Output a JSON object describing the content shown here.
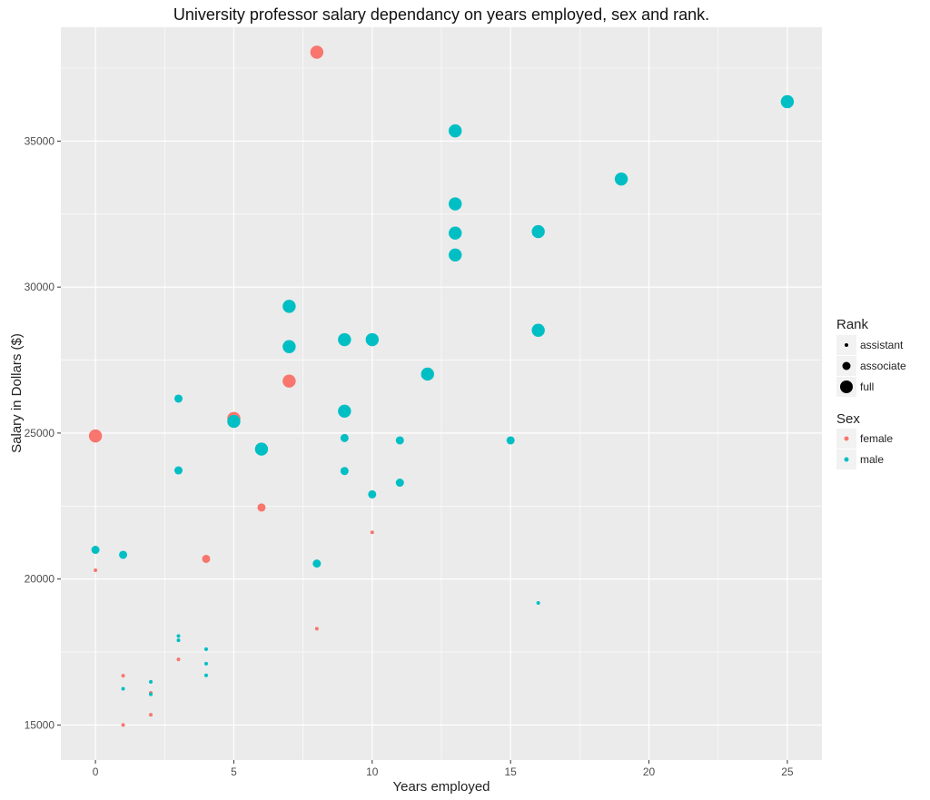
{
  "chart_data": {
    "type": "scatter",
    "title": "University professor salary dependancy on years employed, sex and rank.",
    "xlabel": "Years employed",
    "ylabel": "Salary in Dollars ($)",
    "xlim": [
      -1.25,
      26.25
    ],
    "ylim": [
      13800,
      38900
    ],
    "x_ticks": [
      0,
      5,
      10,
      15,
      20,
      25
    ],
    "y_ticks": [
      15000,
      20000,
      25000,
      30000,
      35000
    ],
    "grid": true,
    "colors": {
      "female": "#F8766D",
      "male": "#00BFC4",
      "panel": "#EBEBEB",
      "grid": "#FFFFFF"
    },
    "legend": {
      "rank": {
        "title": "Rank",
        "entries": [
          "assistant",
          "associate",
          "full"
        ]
      },
      "sex": {
        "title": "Sex",
        "entries": [
          "female",
          "male"
        ]
      }
    },
    "points": [
      {
        "x": 8,
        "y": 38045,
        "sex": "female",
        "rank": "full"
      },
      {
        "x": 0,
        "y": 24900,
        "sex": "female",
        "rank": "full"
      },
      {
        "x": 5,
        "y": 25500,
        "sex": "female",
        "rank": "full"
      },
      {
        "x": 7,
        "y": 26780,
        "sex": "female",
        "rank": "full"
      },
      {
        "x": 6,
        "y": 22450,
        "sex": "female",
        "rank": "associate"
      },
      {
        "x": 4,
        "y": 20690,
        "sex": "female",
        "rank": "associate"
      },
      {
        "x": 0,
        "y": 20300,
        "sex": "female",
        "rank": "assistant"
      },
      {
        "x": 1,
        "y": 16690,
        "sex": "female",
        "rank": "assistant"
      },
      {
        "x": 1,
        "y": 15000,
        "sex": "female",
        "rank": "assistant"
      },
      {
        "x": 2,
        "y": 16100,
        "sex": "female",
        "rank": "assistant"
      },
      {
        "x": 2,
        "y": 15350,
        "sex": "female",
        "rank": "assistant"
      },
      {
        "x": 3,
        "y": 17250,
        "sex": "female",
        "rank": "assistant"
      },
      {
        "x": 8,
        "y": 18300,
        "sex": "female",
        "rank": "assistant"
      },
      {
        "x": 10,
        "y": 21600,
        "sex": "female",
        "rank": "assistant"
      },
      {
        "x": 25,
        "y": 36350,
        "sex": "male",
        "rank": "full"
      },
      {
        "x": 13,
        "y": 35350,
        "sex": "male",
        "rank": "full"
      },
      {
        "x": 19,
        "y": 33700,
        "sex": "male",
        "rank": "full"
      },
      {
        "x": 13,
        "y": 32850,
        "sex": "male",
        "rank": "full"
      },
      {
        "x": 16,
        "y": 31900,
        "sex": "male",
        "rank": "full"
      },
      {
        "x": 13,
        "y": 31850,
        "sex": "male",
        "rank": "full"
      },
      {
        "x": 13,
        "y": 31100,
        "sex": "male",
        "rank": "full"
      },
      {
        "x": 7,
        "y": 29340,
        "sex": "male",
        "rank": "full"
      },
      {
        "x": 16,
        "y": 28520,
        "sex": "male",
        "rank": "full"
      },
      {
        "x": 9,
        "y": 28200,
        "sex": "male",
        "rank": "full"
      },
      {
        "x": 10,
        "y": 28200,
        "sex": "male",
        "rank": "full"
      },
      {
        "x": 7,
        "y": 27960,
        "sex": "male",
        "rank": "full"
      },
      {
        "x": 12,
        "y": 27020,
        "sex": "male",
        "rank": "full"
      },
      {
        "x": 9,
        "y": 25750,
        "sex": "male",
        "rank": "full"
      },
      {
        "x": 5,
        "y": 25400,
        "sex": "male",
        "rank": "full"
      },
      {
        "x": 6,
        "y": 24450,
        "sex": "male",
        "rank": "full"
      },
      {
        "x": 3,
        "y": 26180,
        "sex": "male",
        "rank": "associate"
      },
      {
        "x": 9,
        "y": 24830,
        "sex": "male",
        "rank": "associate"
      },
      {
        "x": 11,
        "y": 24750,
        "sex": "male",
        "rank": "associate"
      },
      {
        "x": 15,
        "y": 24750,
        "sex": "male",
        "rank": "associate"
      },
      {
        "x": 3,
        "y": 23720,
        "sex": "male",
        "rank": "associate"
      },
      {
        "x": 9,
        "y": 23700,
        "sex": "male",
        "rank": "associate"
      },
      {
        "x": 11,
        "y": 23300,
        "sex": "male",
        "rank": "associate"
      },
      {
        "x": 10,
        "y": 22900,
        "sex": "male",
        "rank": "associate"
      },
      {
        "x": 0,
        "y": 21000,
        "sex": "male",
        "rank": "associate"
      },
      {
        "x": 1,
        "y": 20830,
        "sex": "male",
        "rank": "associate"
      },
      {
        "x": 8,
        "y": 20530,
        "sex": "male",
        "rank": "associate"
      },
      {
        "x": 16,
        "y": 19180,
        "sex": "male",
        "rank": "assistant"
      },
      {
        "x": 3,
        "y": 18050,
        "sex": "male",
        "rank": "assistant"
      },
      {
        "x": 3,
        "y": 17900,
        "sex": "male",
        "rank": "assistant"
      },
      {
        "x": 4,
        "y": 17600,
        "sex": "male",
        "rank": "assistant"
      },
      {
        "x": 4,
        "y": 17100,
        "sex": "male",
        "rank": "assistant"
      },
      {
        "x": 4,
        "y": 16700,
        "sex": "male",
        "rank": "assistant"
      },
      {
        "x": 2,
        "y": 16480,
        "sex": "male",
        "rank": "assistant"
      },
      {
        "x": 1,
        "y": 16240,
        "sex": "male",
        "rank": "assistant"
      },
      {
        "x": 2,
        "y": 16050,
        "sex": "male",
        "rank": "assistant"
      }
    ]
  }
}
